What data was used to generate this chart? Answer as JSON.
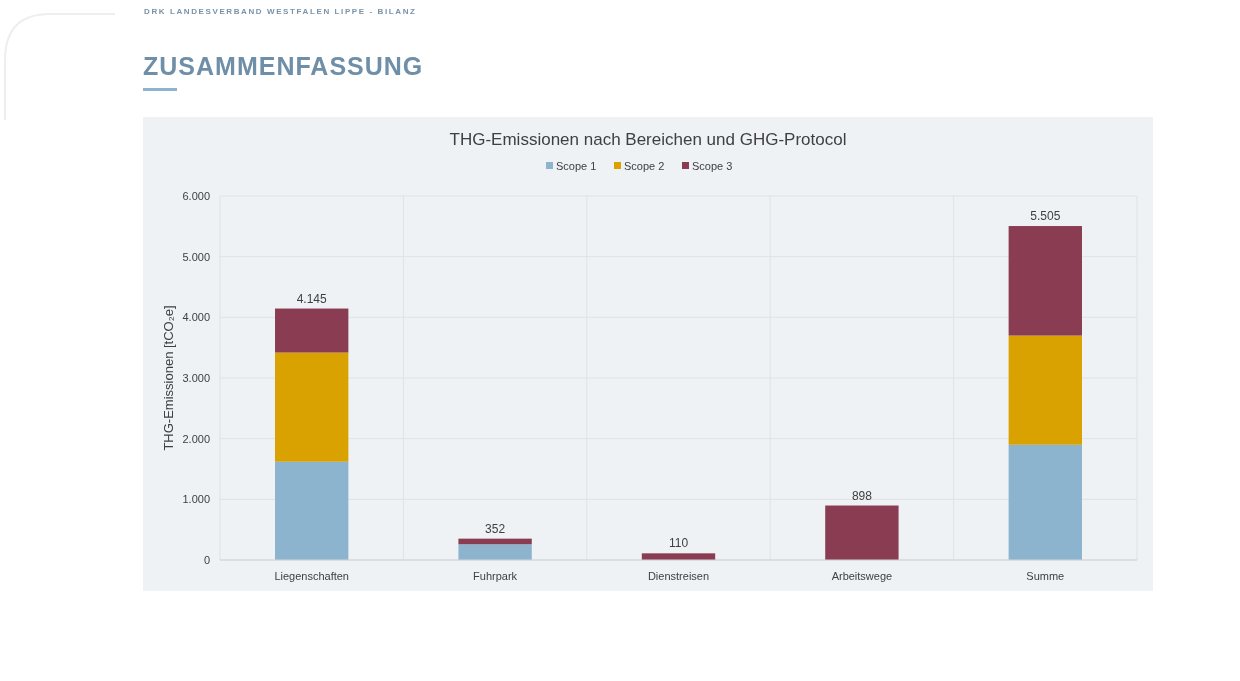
{
  "chart_data": {
    "type": "bar",
    "title": "THG-Emissionen nach Bereichen und GHG-Protocol",
    "ylabel": "THG-Emissionen [tCO₂e]",
    "annotations": [
      "DRK LANDESVERBAND WESTFALEN LIPPE - BILANZ",
      "ZUSAMMENFASSUNG"
    ],
    "categories": [
      "Liegenschaften",
      "Fuhrpark",
      "Dienstreisen",
      "Arbeitswege",
      "Summe"
    ],
    "series": [
      {
        "name": "Scope 1",
        "color": "#8db4cf",
        "values": [
          1620,
          260,
          0,
          0,
          1900
        ]
      },
      {
        "name": "Scope 2",
        "color": "#d9a200",
        "values": [
          1800,
          0,
          0,
          0,
          1800
        ]
      },
      {
        "name": "Scope 3",
        "color": "#8a3d52",
        "values": [
          725,
          92,
          110,
          898,
          1805
        ]
      }
    ],
    "stacked": true,
    "totals": [
      "4.145",
      "352",
      "110",
      "898",
      "5.505"
    ],
    "ylim": [
      0,
      6000
    ],
    "yticks": [
      0,
      {
        "value": 1000,
        "label": "1.000"
      },
      {
        "value": 2000,
        "label": "2.000"
      },
      {
        "value": 3000,
        "label": "3.000"
      },
      {
        "value": 4000,
        "label": "4.000"
      },
      {
        "value": 5000,
        "label": "5.000"
      },
      {
        "value": 6000,
        "label": "6.000"
      }
    ],
    "grid": true,
    "legend": "top"
  }
}
